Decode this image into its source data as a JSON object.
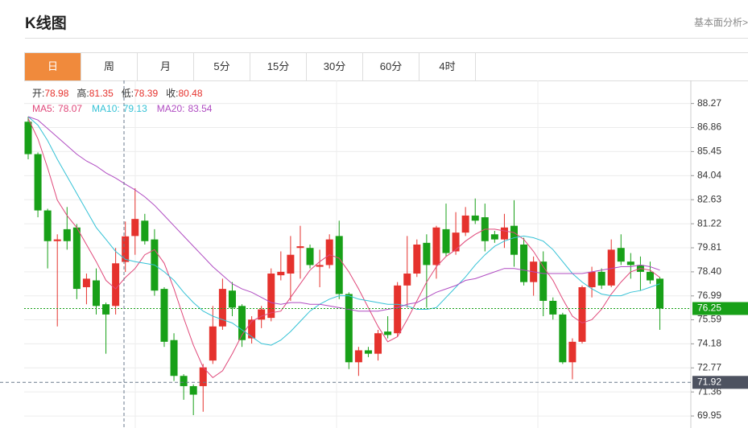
{
  "header": {
    "title": "K线图",
    "link": "基本面分析>"
  },
  "tabs": [
    "日",
    "周",
    "月",
    "5分",
    "15分",
    "30分",
    "60分",
    "4时"
  ],
  "active_tab": 0,
  "chart_data": {
    "type": "candlestick",
    "ohlc_labels": [
      "开:",
      "高:",
      "低:",
      "收:"
    ],
    "up_color": "#e5322d",
    "down_color": "#18a018",
    "ylim": [
      69.34,
      89.62
    ],
    "yticks": [
      88.27,
      86.86,
      85.45,
      84.04,
      82.63,
      81.22,
      79.81,
      {
        "value": 78.4,
        "label": "78.40"
      },
      76.99,
      75.59,
      74.18,
      72.77,
      71.36,
      69.95
    ],
    "grid": true,
    "open": [
      87.2,
      85.3,
      82.0,
      80.2,
      80.9,
      81.0,
      77.5,
      77.9,
      76.5,
      76.4,
      78.98,
      80.5,
      81.4,
      80.3,
      77.4,
      74.4,
      72.3,
      71.7,
      71.7,
      73.2,
      75.2,
      77.3,
      76.4,
      74.5,
      75.6,
      75.7,
      78.2,
      78.3,
      79.8,
      79.8,
      78.7,
      78.8,
      80.5,
      77.1,
      73.1,
      73.8,
      73.6,
      74.9,
      74.8,
      77.6,
      78.3,
      80.1,
      78.8,
      80.9,
      79.6,
      80.7,
      81.7,
      81.6,
      80.6,
      80.3,
      81.1,
      80.0,
      77.8,
      79.0,
      76.7,
      75.9,
      73.1,
      74.3,
      77.5,
      78.4,
      77.6,
      79.8,
      79.0,
      78.8,
      78.4,
      78.0
    ],
    "close": [
      85.3,
      82.0,
      80.2,
      80.3,
      80.2,
      77.4,
      78.0,
      76.4,
      75.9,
      78.9,
      80.48,
      81.5,
      80.2,
      77.3,
      74.3,
      72.3,
      71.7,
      71.2,
      72.8,
      75.2,
      77.4,
      76.3,
      74.4,
      75.6,
      76.2,
      78.3,
      78.4,
      79.4,
      79.9,
      78.8,
      78.8,
      80.3,
      77.1,
      73.1,
      73.8,
      73.6,
      74.8,
      74.7,
      77.6,
      78.3,
      80.0,
      78.8,
      81.0,
      79.5,
      80.7,
      81.7,
      81.4,
      80.2,
      80.3,
      81.0,
      79.4,
      77.8,
      79.0,
      76.7,
      75.9,
      73.1,
      74.3,
      77.5,
      78.4,
      77.6,
      79.7,
      79.0,
      78.8,
      78.4,
      77.9,
      76.25
    ],
    "high": [
      87.5,
      85.4,
      82.1,
      80.6,
      82.2,
      81.2,
      78.3,
      78.6,
      76.6,
      79.8,
      81.35,
      83.3,
      81.8,
      80.9,
      77.5,
      74.8,
      72.4,
      71.8,
      73.0,
      76.4,
      78.0,
      77.8,
      76.5,
      75.8,
      76.4,
      78.6,
      79.6,
      80.5,
      81.1,
      80.0,
      79.7,
      80.6,
      81.4,
      77.2,
      74.0,
      74.0,
      75.0,
      75.8,
      77.8,
      80.5,
      80.3,
      80.6,
      81.1,
      82.4,
      81.9,
      82.2,
      82.7,
      82.4,
      80.8,
      81.8,
      82.6,
      80.4,
      79.3,
      79.6,
      76.9,
      76.0,
      74.5,
      77.6,
      78.7,
      78.6,
      80.3,
      80.6,
      79.5,
      79.3,
      79.0,
      78.1
    ],
    "low": [
      85.0,
      81.6,
      78.6,
      75.2,
      79.7,
      76.8,
      76.5,
      75.9,
      73.6,
      75.9,
      78.39,
      79.4,
      80.0,
      77.0,
      74.0,
      72.0,
      70.9,
      70.0,
      70.2,
      73.0,
      75.0,
      75.8,
      74.0,
      74.2,
      75.1,
      75.5,
      77.9,
      76.7,
      78.0,
      78.6,
      77.5,
      78.6,
      76.8,
      72.7,
      72.3,
      73.4,
      73.2,
      74.5,
      74.6,
      76.3,
      78.1,
      76.3,
      78.0,
      79.3,
      79.4,
      80.5,
      81.2,
      79.6,
      80.1,
      79.8,
      78.7,
      77.6,
      77.0,
      75.8,
      75.6,
      73.0,
      72.1,
      74.2,
      76.9,
      77.4,
      77.5,
      78.8,
      78.0,
      77.3,
      77.7,
      75.0
    ],
    "series": [
      {
        "name": "MA5:",
        "color": "#e0487a",
        "values": [
          87.4,
          86.2,
          84.5,
          82.6,
          81.7,
          81.0,
          80.0,
          79.0,
          77.9,
          77.4,
          78.07,
          78.6,
          79.4,
          79.7,
          78.9,
          77.4,
          75.7,
          74.1,
          72.8,
          72.2,
          72.6,
          73.6,
          74.7,
          75.5,
          75.8,
          76.0,
          76.1,
          76.9,
          77.7,
          78.5,
          79.0,
          79.4,
          79.2,
          78.4,
          77.4,
          76.3,
          75.2,
          74.3,
          74.6,
          75.6,
          76.7,
          77.8,
          78.7,
          79.3,
          79.7,
          80.2,
          80.6,
          80.9,
          80.9,
          80.8,
          80.7,
          80.3,
          79.6,
          78.7,
          77.9,
          76.8,
          75.8,
          75.4,
          75.6,
          76.2,
          77.1,
          77.8,
          78.4,
          78.6,
          78.5,
          78.07
        ]
      },
      {
        "name": "MA10:",
        "color": "#35c2d6",
        "values": [
          87.5,
          87.0,
          86.1,
          85.0,
          84.0,
          83.0,
          82.0,
          81.0,
          80.3,
          79.6,
          79.13,
          79.0,
          78.9,
          78.8,
          78.4,
          77.9,
          77.2,
          76.6,
          76.1,
          75.8,
          75.6,
          75.4,
          75.0,
          74.6,
          74.2,
          74.1,
          74.4,
          74.9,
          75.5,
          76.1,
          76.5,
          76.8,
          77.0,
          77.0,
          76.8,
          76.7,
          76.6,
          76.5,
          76.5,
          76.4,
          76.2,
          76.2,
          76.3,
          76.9,
          77.5,
          78.1,
          78.8,
          79.4,
          79.9,
          80.2,
          80.4,
          80.5,
          80.4,
          80.2,
          79.7,
          79.0,
          78.3,
          77.8,
          77.4,
          77.1,
          77.0,
          77.0,
          77.2,
          77.3,
          77.5,
          77.7
        ]
      },
      {
        "name": "MA20:",
        "color": "#b04cc2",
        "values": [
          87.5,
          87.3,
          86.8,
          86.3,
          85.8,
          85.3,
          84.9,
          84.6,
          84.2,
          83.9,
          83.54,
          83.2,
          82.8,
          82.3,
          81.7,
          81.1,
          80.5,
          79.9,
          79.3,
          78.7,
          78.2,
          77.7,
          77.4,
          77.2,
          76.9,
          76.6,
          76.5,
          76.6,
          76.6,
          76.5,
          76.5,
          76.4,
          76.3,
          76.2,
          76.1,
          76.1,
          76.1,
          76.2,
          76.3,
          76.5,
          76.6,
          76.9,
          77.2,
          77.4,
          77.6,
          77.9,
          78.0,
          78.2,
          78.4,
          78.6,
          78.6,
          78.5,
          78.4,
          78.3,
          78.3,
          78.3,
          78.3,
          78.3,
          78.4,
          78.5,
          78.6,
          78.7,
          78.7,
          78.8,
          78.7,
          78.5
        ]
      }
    ],
    "last_price": 76.25,
    "last_price_color": "#18a018",
    "cursor_price": 71.92
  }
}
